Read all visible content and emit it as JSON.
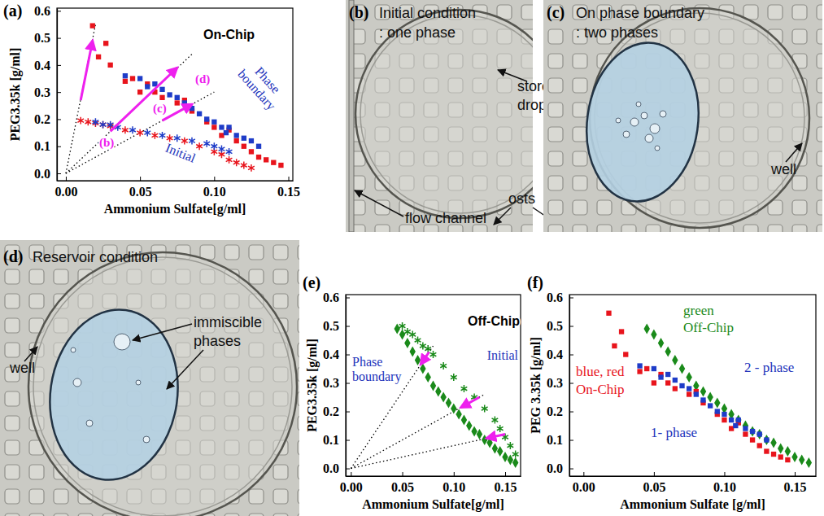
{
  "chart_data": [
    {
      "panel_label": "(a)",
      "type": "scatter",
      "title": "On-Chip",
      "x_label": "Ammonium Sulfate[g/ml]",
      "y_label": "PEG3.35k [g/ml]",
      "xlim": [
        -0.006,
        0.153
      ],
      "ylim": [
        -0.027,
        0.61
      ],
      "xticks": [
        {
          "value": 0,
          "label": "0.00"
        },
        0.05,
        {
          "value": 0.1,
          "label": "0.10"
        },
        0.15
      ],
      "yticks": [
        {
          "value": 0,
          "label": "0.0"
        },
        0.1,
        0.2,
        0.3,
        0.4,
        0.5,
        0.6
      ],
      "series": [
        {
          "type": "line",
          "line_style": "dotted",
          "color": "#000000",
          "x": [
            0,
            0.02
          ],
          "values": [
            0,
            0.55
          ]
        },
        {
          "type": "line",
          "line_style": "dotted",
          "color": "#000000",
          "x": [
            0,
            0.085
          ],
          "values": [
            0,
            0.44
          ]
        },
        {
          "type": "line",
          "line_style": "dotted",
          "color": "#000000",
          "x": [
            0,
            0.1
          ],
          "values": [
            0,
            0.3
          ]
        },
        {
          "color": "#e8141c",
          "marker": "square",
          "x": [
            0.018,
            0.022,
            0.027,
            0.03,
            0.04,
            0.045,
            0.05,
            0.055,
            0.06,
            0.065,
            0.075,
            0.08,
            0.085,
            0.095,
            0.1,
            0.105,
            0.11,
            0.115,
            0.12,
            0.125,
            0.13,
            0.135,
            0.14,
            0.145
          ],
          "values": [
            0.545,
            0.43,
            0.48,
            0.4,
            0.34,
            0.35,
            0.3,
            0.33,
            0.3,
            0.28,
            0.26,
            0.27,
            0.23,
            0.19,
            0.17,
            0.14,
            0.16,
            0.12,
            0.1,
            0.08,
            0.06,
            0.05,
            0.04,
            0.03
          ]
        },
        {
          "color": "#1e3cc8",
          "marker": "square",
          "x": [
            0.04,
            0.05,
            0.055,
            0.06,
            0.065,
            0.07,
            0.075,
            0.08,
            0.085,
            0.09,
            0.095,
            0.1,
            0.105,
            0.108,
            0.11,
            0.115,
            0.12,
            0.125,
            0.13
          ],
          "values": [
            0.36,
            0.35,
            0.32,
            0.33,
            0.31,
            0.29,
            0.28,
            0.26,
            0.24,
            0.22,
            0.2,
            0.19,
            0.17,
            0.15,
            0.17,
            0.14,
            0.13,
            0.12,
            0.1
          ]
        },
        {
          "color": "#e8141c",
          "marker": "asterisk",
          "x": [
            0.01,
            0.015,
            0.02,
            0.025,
            0.03,
            0.04,
            0.05,
            0.06,
            0.07,
            0.08,
            0.09,
            0.1,
            0.105,
            0.11,
            0.115,
            0.12,
            0.125
          ],
          "values": [
            0.195,
            0.19,
            0.185,
            0.18,
            0.175,
            0.16,
            0.15,
            0.14,
            0.13,
            0.12,
            0.1,
            0.08,
            0.07,
            0.05,
            0.04,
            0.03,
            0.02
          ]
        },
        {
          "color": "#1e3cc8",
          "marker": "asterisk",
          "x": [
            0.02,
            0.025,
            0.03,
            0.035,
            0.045,
            0.055,
            0.065,
            0.075,
            0.085,
            0.095,
            0.1,
            0.105,
            0.11
          ],
          "values": [
            0.19,
            0.18,
            0.18,
            0.17,
            0.16,
            0.15,
            0.14,
            0.13,
            0.12,
            0.11,
            0.1,
            0.09,
            0.08
          ]
        },
        {
          "type": "arrow",
          "color": "#ee20ee",
          "x": [
            0.01,
            0.018
          ],
          "values": [
            0.27,
            0.49
          ]
        },
        {
          "type": "arrow",
          "color": "#ee20ee",
          "x": [
            0.03,
            0.075
          ],
          "values": [
            0.155,
            0.39
          ]
        },
        {
          "type": "arrow",
          "color": "#ee20ee",
          "x": [
            0.065,
            0.085
          ],
          "values": [
            0.195,
            0.255
          ]
        }
      ],
      "annotations": [
        {
          "text": "(b)",
          "color": "#ee20ee"
        },
        {
          "text": "(c)",
          "color": "#ee20ee"
        },
        {
          "text": "(d)",
          "color": "#ee20ee"
        },
        {
          "text": "Phase boundary",
          "color": "#2233bb"
        },
        {
          "text": "Initial",
          "color": "#2233bb"
        }
      ]
    },
    {
      "panel_label": "(e)",
      "type": "scatter",
      "title": "Off-Chip",
      "x_label": "Ammonium Sulfate[g/ml]",
      "y_label": "PEG3.35k [g/ml]",
      "xlim": [
        -0.005,
        0.165
      ],
      "ylim": [
        -0.027,
        0.61
      ],
      "xticks": [
        {
          "value": 0,
          "label": "0.00"
        },
        0.05,
        {
          "value": 0.1,
          "label": "0.10"
        },
        0.15
      ],
      "yticks": [
        {
          "value": 0,
          "label": "0.0"
        },
        0.1,
        0.2,
        0.3,
        0.4,
        0.5,
        0.6
      ],
      "series": [
        {
          "type": "line",
          "line_style": "dotted",
          "color": "#000000",
          "x": [
            0,
            0.08
          ],
          "values": [
            0,
            0.43
          ]
        },
        {
          "type": "line",
          "line_style": "dotted",
          "color": "#000000",
          "x": [
            0,
            0.13
          ],
          "values": [
            0,
            0.26
          ]
        },
        {
          "type": "line",
          "line_style": "dotted",
          "color": "#000000",
          "x": [
            0,
            0.15
          ],
          "values": [
            0,
            0.12
          ]
        },
        {
          "color": "#1a8a1a",
          "marker": "diamond",
          "x": [
            0.045,
            0.05,
            0.055,
            0.06,
            0.065,
            0.07,
            0.075,
            0.08,
            0.085,
            0.09,
            0.095,
            0.1,
            0.105,
            0.11,
            0.115,
            0.12,
            0.125,
            0.13,
            0.135,
            0.14,
            0.145,
            0.15,
            0.155,
            0.16
          ],
          "values": [
            0.49,
            0.47,
            0.44,
            0.41,
            0.38,
            0.35,
            0.32,
            0.29,
            0.27,
            0.25,
            0.23,
            0.21,
            0.19,
            0.17,
            0.15,
            0.13,
            0.12,
            0.1,
            0.09,
            0.07,
            0.06,
            0.04,
            0.03,
            0.02
          ]
        },
        {
          "color": "#1a8a1a",
          "marker": "asterisk",
          "x": [
            0.05,
            0.055,
            0.06,
            0.065,
            0.07,
            0.075,
            0.08,
            0.09,
            0.1,
            0.11,
            0.12,
            0.13,
            0.14,
            0.145,
            0.15,
            0.155,
            0.16
          ],
          "values": [
            0.5,
            0.48,
            0.47,
            0.45,
            0.43,
            0.42,
            0.4,
            0.36,
            0.32,
            0.28,
            0.25,
            0.21,
            0.17,
            0.14,
            0.11,
            0.08,
            0.05
          ]
        },
        {
          "type": "arrow",
          "color": "#ee20ee",
          "x": [
            0.076,
            0.068
          ],
          "values": [
            0.408,
            0.366
          ]
        },
        {
          "type": "arrow",
          "color": "#ee20ee",
          "x": [
            0.125,
            0.107
          ],
          "values": [
            0.25,
            0.214
          ]
        },
        {
          "type": "arrow",
          "color": "#ee20ee",
          "x": [
            0.15,
            0.132
          ],
          "values": [
            0.12,
            0.106
          ]
        }
      ],
      "annotations": [
        {
          "text": "Phase boundary",
          "color": "#2233bb"
        },
        {
          "text": "Initial",
          "color": "#2233bb"
        }
      ]
    },
    {
      "panel_label": "(f)",
      "type": "scatter",
      "x_label": "Ammonium Sulfate [g/ml]",
      "y_label": "PEG 3.35k [g/ml]",
      "xlim": [
        -0.01,
        0.165
      ],
      "ylim": [
        -0.027,
        0.61
      ],
      "xticks": [
        {
          "value": 0,
          "label": "0.00"
        },
        0.05,
        {
          "value": 0.1,
          "label": "0.10"
        },
        0.15
      ],
      "yticks": [
        {
          "value": 0,
          "label": "0.0"
        },
        0.1,
        0.2,
        0.3,
        0.4,
        0.5,
        0.6
      ],
      "series": [
        {
          "color": "#1a8a1a",
          "marker": "diamond",
          "x": [
            0.045,
            0.05,
            0.055,
            0.06,
            0.065,
            0.07,
            0.075,
            0.08,
            0.085,
            0.09,
            0.095,
            0.1,
            0.105,
            0.11,
            0.115,
            0.12,
            0.125,
            0.13,
            0.135,
            0.14,
            0.145,
            0.15,
            0.155,
            0.16
          ],
          "values": [
            0.49,
            0.47,
            0.44,
            0.41,
            0.38,
            0.35,
            0.32,
            0.29,
            0.27,
            0.25,
            0.23,
            0.21,
            0.19,
            0.17,
            0.15,
            0.13,
            0.12,
            0.1,
            0.09,
            0.07,
            0.06,
            0.04,
            0.03,
            0.02
          ]
        },
        {
          "color": "#e8141c",
          "marker": "square",
          "x": [
            0.018,
            0.022,
            0.027,
            0.03,
            0.04,
            0.045,
            0.05,
            0.055,
            0.06,
            0.065,
            0.075,
            0.08,
            0.085,
            0.095,
            0.1,
            0.105,
            0.11,
            0.115,
            0.12,
            0.125,
            0.13,
            0.135,
            0.14,
            0.145
          ],
          "values": [
            0.545,
            0.43,
            0.48,
            0.4,
            0.34,
            0.35,
            0.3,
            0.33,
            0.3,
            0.28,
            0.26,
            0.27,
            0.23,
            0.19,
            0.17,
            0.14,
            0.16,
            0.12,
            0.1,
            0.08,
            0.06,
            0.05,
            0.04,
            0.03
          ]
        },
        {
          "color": "#1e3cc8",
          "marker": "square",
          "x": [
            0.04,
            0.05,
            0.055,
            0.06,
            0.065,
            0.07,
            0.075,
            0.08,
            0.085,
            0.09,
            0.095,
            0.1,
            0.105,
            0.108,
            0.11,
            0.115,
            0.12,
            0.125,
            0.13
          ],
          "values": [
            0.36,
            0.35,
            0.32,
            0.33,
            0.31,
            0.29,
            0.28,
            0.26,
            0.24,
            0.22,
            0.2,
            0.19,
            0.17,
            0.15,
            0.17,
            0.14,
            0.13,
            0.12,
            0.1
          ]
        }
      ],
      "annotations": [
        {
          "text": "green",
          "color": "#1a8a1a"
        },
        {
          "text": "Off-Chip",
          "color": "#1a8a1a"
        },
        {
          "text": "blue, red",
          "color": "#e8141c"
        },
        {
          "text": "On-Chip",
          "color": "#e8141c"
        },
        {
          "text": "2 - phase",
          "color": "#2233bb"
        },
        {
          "text": "1- phase",
          "color": "#2233bb"
        }
      ]
    }
  ],
  "images": [
    {
      "panel_label": "(b)",
      "caption": [
        "Initial condition",
        ": one phase"
      ],
      "callouts": [
        "stored drop",
        "osts",
        "flow channel"
      ]
    },
    {
      "panel_label": "(c)",
      "caption": [
        "On phase boundary",
        ": two phases"
      ],
      "callouts": [
        "well"
      ]
    },
    {
      "panel_label": "(d)",
      "caption": [
        "Reservoir condition"
      ],
      "callouts": [
        "immiscible phases",
        "well"
      ]
    }
  ]
}
